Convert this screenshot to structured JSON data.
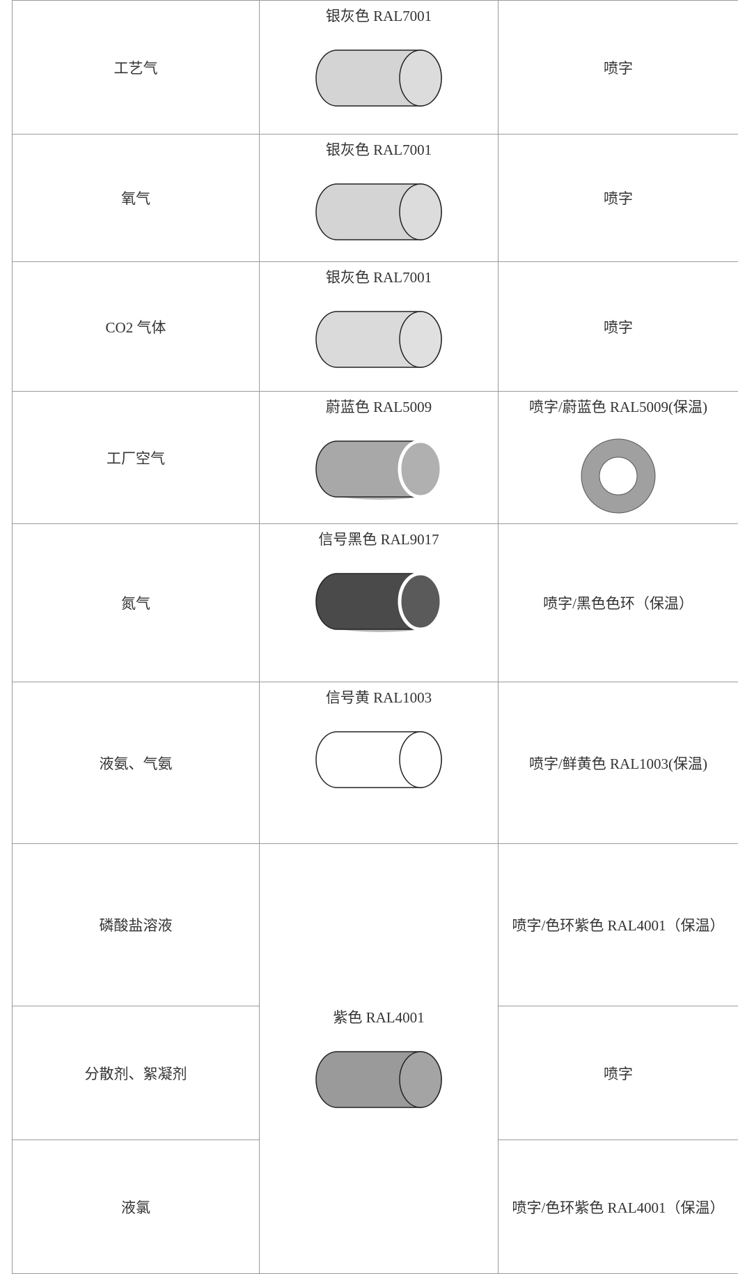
{
  "table": {
    "rows": [
      {
        "medium": "工艺气",
        "pipe_color": "银灰色 RAL7001",
        "marking": "喷字"
      },
      {
        "medium": "氧气",
        "pipe_color": "银灰色 RAL7001",
        "marking": "喷字"
      },
      {
        "medium": "CO2 气体",
        "pipe_color": "银灰色 RAL7001",
        "marking": "喷字"
      },
      {
        "medium": "工厂空气",
        "pipe_color": "蔚蓝色 RAL5009",
        "marking": "喷字/蔚蓝色 RAL5009(保温)"
      },
      {
        "medium": "氮气",
        "pipe_color": "信号黑色 RAL9017",
        "marking": "喷字/黑色色环（保温）"
      },
      {
        "medium": "液氨、气氨",
        "pipe_color": "信号黄 RAL1003",
        "marking": "喷字/鲜黄色 RAL1003(保温)"
      },
      {
        "medium": "磷酸盐溶液",
        "marking": "喷字/色环紫色 RAL4001（保温）"
      },
      {
        "medium": "分散剂、絮凝剂",
        "marking": "喷字"
      },
      {
        "medium": "液氯",
        "marking": "喷字/色环紫色 RAL4001（保温）"
      }
    ],
    "merged_pipe_color": "紫色 RAL4001"
  }
}
